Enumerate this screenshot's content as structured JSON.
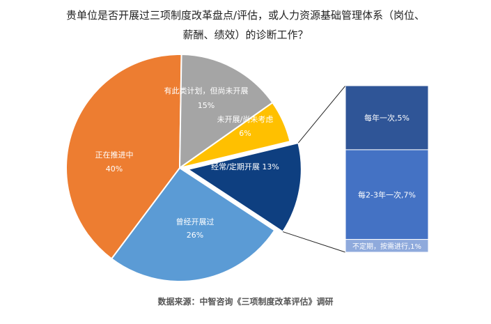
{
  "chart_data": {
    "type": "pie",
    "title_line1": "贵单位是否开展过三项制度改革盘点/评估，或人力资源基础管理体系（岗位、",
    "title_line2": "薪酬、绩效）的诊断工作？",
    "slices": [
      {
        "name": "经常/定期开展",
        "value": 13,
        "label": "13%",
        "color": "#0E3F80",
        "text_color": "#ffffff"
      },
      {
        "name": "曾经开展过",
        "value": 26,
        "label": "26%",
        "color": "#5B9BD5",
        "text_color": "#ffffff"
      },
      {
        "name": "正在推进中",
        "value": 40,
        "label": "40%",
        "color": "#ED7D31",
        "text_color": "#ffffff"
      },
      {
        "name": "有此类计划，但尚未开展",
        "value": 15,
        "label": "15%",
        "color": "#A5A5A5",
        "text_color": "#ffffff"
      },
      {
        "name": "未开展/尚未考虑",
        "value": 6,
        "label": "6%",
        "color": "#FFC000",
        "text_color": "#ffffff"
      }
    ],
    "breakdown_of": "经常/定期开展",
    "breakdown": [
      {
        "label": "每年一次,5%",
        "value": 5,
        "color": "#2F5597"
      },
      {
        "label": "每2-3年一次,7%",
        "value": 7,
        "color": "#4472C4"
      },
      {
        "label": "不定期，按需进行,1%",
        "value": 1,
        "color": "#8FAADC"
      }
    ]
  },
  "source": "数据来源：中智咨询《三项制度改革评估》调研"
}
